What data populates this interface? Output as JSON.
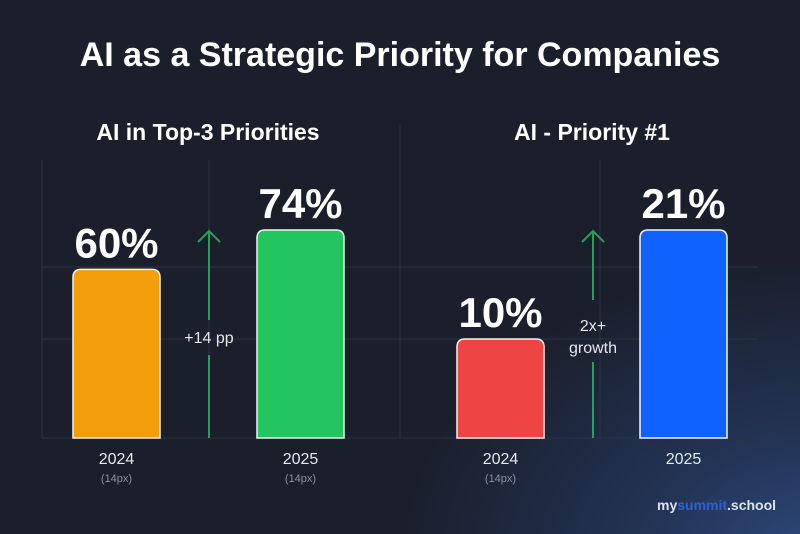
{
  "title": "AI as a Strategic Priority for Companies",
  "chart_data": [
    {
      "type": "bar",
      "title": "AI in Top-3 Priorities",
      "categories": [
        "2024",
        "2025"
      ],
      "category_notes": [
        "(14px)",
        "(14px)"
      ],
      "values": [
        60,
        74
      ],
      "value_labels": [
        "60%",
        "74%"
      ],
      "colors": [
        "#f59e0b",
        "#22c55e"
      ],
      "annotation": [
        "+14 pp"
      ],
      "arrow_color": "#22a35a",
      "grid": true
    },
    {
      "type": "bar",
      "title": "AI - Priority #1",
      "categories": [
        "2024",
        "2025"
      ],
      "category_notes": [
        "(14px)",
        ""
      ],
      "values": [
        10,
        21
      ],
      "value_labels": [
        "10%",
        "21%"
      ],
      "colors": [
        "#ef4444",
        "#0f62fe"
      ],
      "annotation": [
        "2x+",
        "growth"
      ],
      "arrow_color": "#22a35a",
      "grid": true
    }
  ],
  "brand": {
    "part1": "my",
    "part2": "summit",
    "part3": ".school"
  }
}
